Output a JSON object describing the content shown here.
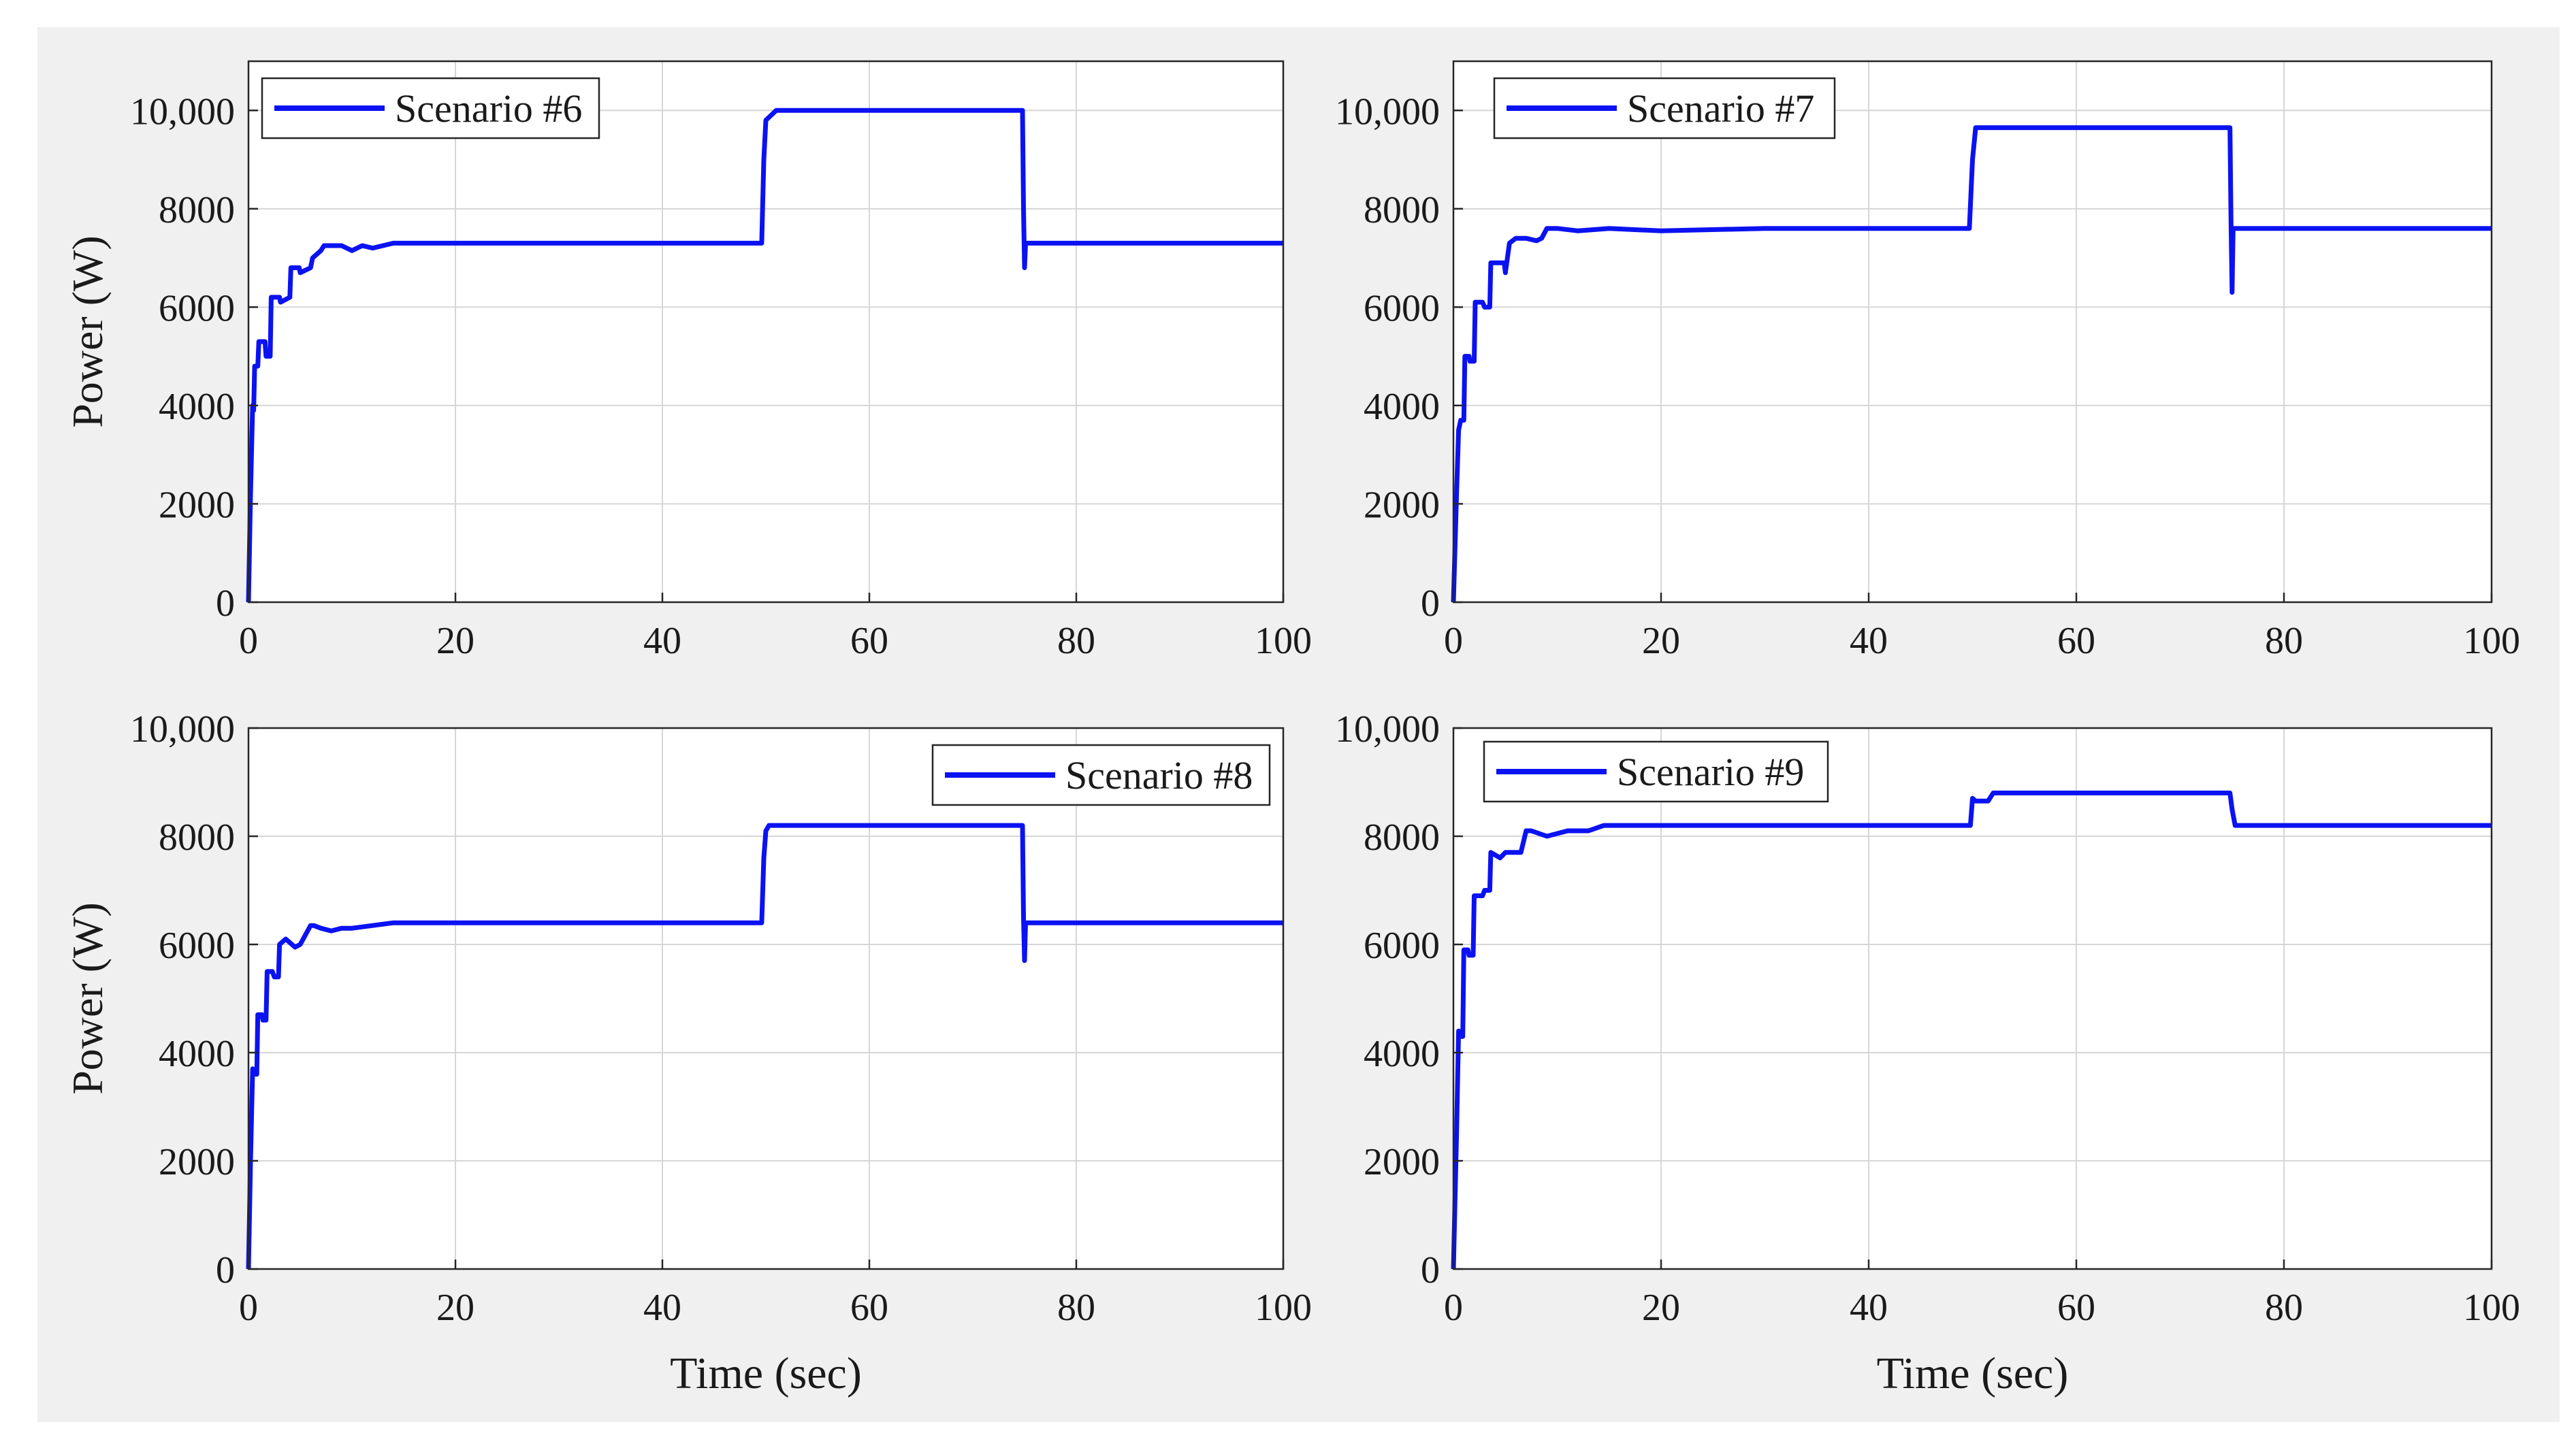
{
  "figure": {
    "background": "#f0f0f0",
    "plot_background": "#ffffff",
    "series_color": "#0b12f2",
    "grid_color": "#d6d6d6",
    "axis_color": "#262626"
  },
  "chart_data": [
    {
      "type": "line",
      "xlabel": "",
      "ylabel": "Power (W)",
      "xlim": [
        0,
        100
      ],
      "ylim": [
        0,
        11000
      ],
      "xticks": [
        0,
        20,
        40,
        60,
        80,
        100
      ],
      "xtick_labels": [
        "0",
        "20",
        "40",
        "60",
        "80",
        "100"
      ],
      "yticks": [
        0,
        2000,
        4000,
        6000,
        8000,
        10000
      ],
      "ytick_labels": [
        "0",
        "2000",
        "4000",
        "6000",
        "8000",
        "10,000"
      ],
      "grid": true,
      "legend_position": "top-left",
      "series": [
        {
          "name": "Scenario #6",
          "x": [
            0,
            0.2,
            0.4,
            0.5,
            0.6,
            0.9,
            1,
            1.6,
            1.7,
            2.1,
            2.2,
            3,
            3.1,
            4,
            4.1,
            4.9,
            5,
            6,
            6.2,
            7,
            7.3,
            9,
            10,
            11,
            12,
            13,
            14,
            20,
            30,
            40,
            49.6,
            49.8,
            50,
            50.5,
            51,
            52,
            60,
            70,
            74.8,
            74.9,
            75,
            75.1,
            75.3,
            80,
            90,
            100
          ],
          "y": [
            0,
            2200,
            4000,
            3900,
            4800,
            4800,
            5300,
            5300,
            5000,
            5000,
            6200,
            6200,
            6100,
            6200,
            6800,
            6800,
            6700,
            6800,
            7000,
            7150,
            7250,
            7250,
            7150,
            7250,
            7200,
            7250,
            7300,
            7300,
            7300,
            7300,
            7300,
            9000,
            9800,
            9900,
            10000,
            10000,
            10000,
            10000,
            10000,
            8000,
            6800,
            7300,
            7300,
            7300,
            7300,
            7300
          ]
        }
      ]
    },
    {
      "type": "line",
      "xlabel": "",
      "ylabel": "",
      "xlim": [
        0,
        100
      ],
      "ylim": [
        0,
        11000
      ],
      "xticks": [
        0,
        20,
        40,
        60,
        80,
        100
      ],
      "xtick_labels": [
        "0",
        "20",
        "40",
        "60",
        "80",
        "100"
      ],
      "yticks": [
        0,
        2000,
        4000,
        6000,
        8000,
        10000
      ],
      "ytick_labels": [
        "0",
        "2000",
        "4000",
        "6000",
        "8000",
        "10,000"
      ],
      "grid": true,
      "legend_position": "top-left",
      "series": [
        {
          "name": "Scenario #7",
          "x": [
            0,
            0.3,
            0.5,
            0.7,
            1,
            1.1,
            1.5,
            1.6,
            2,
            2.1,
            2.8,
            3,
            3.5,
            3.6,
            4.9,
            5,
            5.4,
            6,
            7,
            8,
            8.5,
            9,
            10,
            12,
            15,
            20,
            30,
            40,
            49.7,
            50,
            50.3,
            60,
            70,
            74.8,
            74.9,
            75,
            75.1,
            75.2,
            75.4,
            80,
            90,
            100
          ],
          "y": [
            0,
            2200,
            3500,
            3700,
            3700,
            5000,
            5000,
            4900,
            4900,
            6100,
            6100,
            6000,
            6000,
            6900,
            6900,
            6700,
            7300,
            7400,
            7400,
            7350,
            7400,
            7600,
            7600,
            7550,
            7600,
            7550,
            7600,
            7600,
            7600,
            9000,
            9650,
            9650,
            9650,
            9650,
            7800,
            6300,
            7600,
            7600,
            7600,
            7600,
            7600,
            7600
          ]
        }
      ]
    },
    {
      "type": "line",
      "xlabel": "Time (sec)",
      "ylabel": "Power (W)",
      "xlim": [
        0,
        100
      ],
      "ylim": [
        0,
        10000
      ],
      "xticks": [
        0,
        20,
        40,
        60,
        80,
        100
      ],
      "xtick_labels": [
        "0",
        "20",
        "40",
        "60",
        "80",
        "100"
      ],
      "yticks": [
        0,
        2000,
        4000,
        6000,
        8000,
        10000
      ],
      "ytick_labels": [
        "0",
        "2000",
        "4000",
        "6000",
        "8000",
        "10,000"
      ],
      "grid": true,
      "legend_position": "top-right",
      "series": [
        {
          "name": "Scenario #8",
          "x": [
            0,
            0.2,
            0.4,
            0.6,
            0.8,
            0.9,
            1.3,
            1.4,
            1.7,
            1.8,
            2.3,
            2.5,
            2.9,
            3,
            3.6,
            4.5,
            5,
            6,
            6.3,
            7,
            8,
            9,
            10,
            12,
            14,
            20,
            30,
            40,
            49.6,
            49.8,
            50,
            50.3,
            55,
            60,
            70,
            74.8,
            74.9,
            75,
            75.1,
            75.3,
            80,
            90,
            100
          ],
          "y": [
            0,
            2000,
            3700,
            3600,
            3600,
            4700,
            4700,
            4600,
            4600,
            5500,
            5500,
            5400,
            5400,
            6000,
            6100,
            5950,
            6000,
            6350,
            6350,
            6300,
            6250,
            6300,
            6300,
            6350,
            6400,
            6400,
            6400,
            6400,
            6400,
            7600,
            8100,
            8200,
            8200,
            8200,
            8200,
            8200,
            6500,
            5700,
            6400,
            6400,
            6400,
            6400,
            6400
          ]
        }
      ]
    },
    {
      "type": "line",
      "xlabel": "Time (sec)",
      "ylabel": "",
      "xlim": [
        0,
        100
      ],
      "ylim": [
        0,
        10000
      ],
      "xticks": [
        0,
        20,
        40,
        60,
        80,
        100
      ],
      "xtick_labels": [
        "0",
        "20",
        "40",
        "60",
        "80",
        "100"
      ],
      "yticks": [
        0,
        2000,
        4000,
        6000,
        8000,
        10000
      ],
      "ytick_labels": [
        "0",
        "2000",
        "4000",
        "6000",
        "8000",
        "10,000"
      ],
      "grid": true,
      "legend_position": "top-left",
      "series": [
        {
          "name": "Scenario #9",
          "x": [
            0,
            0.3,
            0.5,
            0.6,
            0.9,
            1,
            1.4,
            1.5,
            1.9,
            2,
            2.8,
            3,
            3.5,
            3.6,
            4.5,
            5,
            5.5,
            6.5,
            7,
            7.5,
            9,
            10,
            11,
            13,
            14.5,
            20,
            30,
            40,
            49.8,
            50,
            50.3,
            51.5,
            52,
            55,
            60,
            70,
            74.8,
            75,
            75.3,
            80,
            90,
            100
          ],
          "y": [
            0,
            2500,
            4400,
            4300,
            4300,
            5900,
            5900,
            5800,
            5800,
            6900,
            6900,
            7000,
            7000,
            7700,
            7600,
            7700,
            7700,
            7700,
            8100,
            8100,
            8000,
            8050,
            8100,
            8100,
            8200,
            8200,
            8200,
            8200,
            8200,
            8700,
            8650,
            8650,
            8800,
            8800,
            8800,
            8800,
            8800,
            8500,
            8200,
            8200,
            8200,
            8200
          ]
        }
      ]
    }
  ]
}
